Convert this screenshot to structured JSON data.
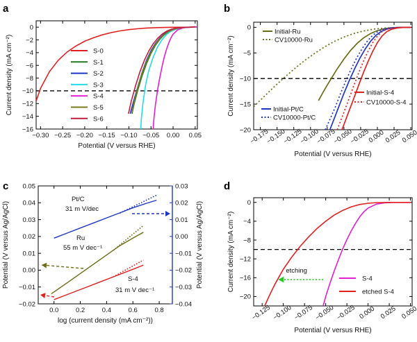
{
  "chart_data": [
    {
      "panel": "a",
      "type": "line",
      "xlabel": "Potential (V versus RHE)",
      "ylabel": "Current density (mA cm⁻²)",
      "xlim": [
        -0.31,
        0.055
      ],
      "ylim": [
        -16,
        1
      ],
      "xticks": [
        -0.3,
        -0.25,
        -0.2,
        -0.15,
        -0.1,
        -0.05,
        0.0,
        0.05
      ],
      "xtick_labels": [
        "−0.30",
        "−0.25",
        "−0.20",
        "−0.15",
        "−0.10",
        "−0.05",
        "0.00",
        "0.05"
      ],
      "yticks": [
        0,
        -2,
        -4,
        -6,
        -8,
        -10,
        -12,
        -14,
        -16
      ],
      "ytick_labels": [
        "0",
        "−2",
        "−4",
        "−6",
        "−8",
        "−10",
        "−12",
        "−14",
        "−16"
      ],
      "hline": -10,
      "legend_position": "middle-left",
      "series": [
        {
          "name": "S-0",
          "color": "#e32020",
          "x": [
            -0.31,
            -0.3,
            -0.28,
            -0.26,
            -0.24,
            -0.22,
            -0.2,
            -0.18,
            -0.16,
            -0.14,
            -0.12,
            -0.1,
            -0.08,
            -0.06,
            -0.04,
            -0.02,
            0.0,
            0.02,
            0.04,
            0.05
          ],
          "y": [
            -11.6,
            -9.6,
            -7.0,
            -5.2,
            -3.9,
            -2.95,
            -2.2,
            -1.65,
            -1.2,
            -0.85,
            -0.58,
            -0.38,
            -0.24,
            -0.14,
            -0.08,
            -0.04,
            -0.02,
            -0.01,
            0.0,
            0.05
          ]
        },
        {
          "name": "S-1",
          "color": "#1e7b1e",
          "x": [
            -0.093,
            -0.088,
            -0.08,
            -0.07,
            -0.06,
            -0.05,
            -0.04,
            -0.03,
            -0.02,
            -0.01,
            0.0,
            0.01,
            0.02,
            0.03,
            0.04,
            0.05
          ],
          "y": [
            -13.6,
            -12.0,
            -9.9,
            -7.6,
            -5.7,
            -4.1,
            -2.85,
            -1.9,
            -1.2,
            -0.7,
            -0.38,
            -0.18,
            -0.08,
            -0.03,
            0.0,
            0.05
          ]
        },
        {
          "name": "S-2",
          "color": "#1f35c4",
          "x": [
            -0.097,
            -0.09,
            -0.08,
            -0.07,
            -0.06,
            -0.05,
            -0.04,
            -0.03,
            -0.02,
            -0.01,
            0.0,
            0.01,
            0.02,
            0.03,
            0.04,
            0.05
          ],
          "y": [
            -13.6,
            -11.8,
            -9.4,
            -7.1,
            -5.2,
            -3.7,
            -2.55,
            -1.7,
            -1.05,
            -0.62,
            -0.33,
            -0.15,
            -0.06,
            -0.02,
            0.0,
            0.05
          ]
        },
        {
          "name": "S-3",
          "color": "#22dde6",
          "x": [
            -0.073,
            -0.072,
            -0.068,
            -0.062,
            -0.055,
            -0.045,
            -0.035,
            -0.025,
            -0.015,
            -0.005,
            0.005,
            0.015,
            0.025,
            0.035,
            0.045,
            0.055
          ],
          "y": [
            -16.0,
            -14.5,
            -11.8,
            -9.0,
            -6.8,
            -4.7,
            -3.1,
            -1.95,
            -1.15,
            -0.65,
            -0.35,
            -0.17,
            -0.07,
            -0.02,
            0.0,
            0.05
          ]
        },
        {
          "name": "S-4",
          "color": "#e020d0",
          "x": [
            -0.045,
            -0.044,
            -0.04,
            -0.035,
            -0.03,
            -0.025,
            -0.02,
            -0.015,
            -0.01,
            -0.005,
            0.0,
            0.01,
            0.02,
            0.03,
            0.04,
            0.055
          ],
          "y": [
            -16.0,
            -14.8,
            -12.2,
            -9.8,
            -7.9,
            -6.2,
            -4.7,
            -3.5,
            -2.5,
            -1.7,
            -1.1,
            -0.45,
            -0.16,
            -0.05,
            0.0,
            0.05
          ]
        },
        {
          "name": "S-5",
          "color": "#7a7a1e",
          "x": [
            -0.093,
            -0.088,
            -0.08,
            -0.07,
            -0.06,
            -0.05,
            -0.04,
            -0.03,
            -0.02,
            -0.01,
            0.0,
            0.01,
            0.02,
            0.03,
            0.04,
            0.05
          ],
          "y": [
            -13.4,
            -11.7,
            -9.5,
            -7.2,
            -5.4,
            -3.9,
            -2.7,
            -1.8,
            -1.15,
            -0.68,
            -0.37,
            -0.17,
            -0.07,
            -0.02,
            0.0,
            0.05
          ]
        },
        {
          "name": "S-6",
          "color": "#c41a3d",
          "x": [
            -0.101,
            -0.095,
            -0.085,
            -0.075,
            -0.065,
            -0.055,
            -0.045,
            -0.035,
            -0.025,
            -0.015,
            -0.005,
            0.005,
            0.015,
            0.025,
            0.035,
            0.05
          ],
          "y": [
            -13.6,
            -11.7,
            -9.2,
            -7.0,
            -5.2,
            -3.75,
            -2.6,
            -1.75,
            -1.1,
            -0.65,
            -0.35,
            -0.16,
            -0.06,
            -0.02,
            0.0,
            0.05
          ]
        }
      ]
    },
    {
      "panel": "b",
      "type": "line",
      "xlabel": "Potential (V versus RHE)",
      "ylabel": "Current density (mA cm⁻²)",
      "xlim": [
        -0.185,
        0.052
      ],
      "ylim": [
        -20,
        1
      ],
      "xticks": [
        -0.175,
        -0.15,
        -0.125,
        -0.1,
        -0.075,
        -0.05,
        -0.025,
        0.0,
        0.025,
        0.05
      ],
      "xtick_labels": [
        "−0.175",
        "−0.150",
        "−0.125",
        "−0.100",
        "−0.075",
        "−0.050",
        "−0.025",
        "0.000",
        "0.025",
        "0.050"
      ],
      "yticks": [
        0,
        -5,
        -10,
        -15,
        -20
      ],
      "ytick_labels": [
        "0",
        "−5",
        "−10",
        "−15",
        "−20"
      ],
      "hline": -10,
      "legend_position": "top-left and bottom",
      "series": [
        {
          "name": "Initial-Ru",
          "color": "#6b6b14",
          "dash": false,
          "x": [
            -0.088,
            -0.08,
            -0.07,
            -0.06,
            -0.05,
            -0.04,
            -0.03,
            -0.02,
            -0.01,
            0.0,
            0.01,
            0.02,
            0.03,
            0.04,
            0.05
          ],
          "y": [
            -14.3,
            -12.4,
            -10.2,
            -8.1,
            -6.2,
            -4.5,
            -3.1,
            -2.0,
            -1.2,
            -0.65,
            -0.3,
            -0.12,
            -0.04,
            -0.01,
            0.0
          ]
        },
        {
          "name": "CV10000-Ru",
          "color": "#6b6b14",
          "dash": true,
          "x": [
            -0.185,
            -0.17,
            -0.155,
            -0.14,
            -0.125,
            -0.11,
            -0.095,
            -0.08,
            -0.065,
            -0.05,
            -0.035,
            -0.02,
            -0.005,
            0.01,
            0.025,
            0.04,
            0.05
          ],
          "y": [
            -15.5,
            -13.6,
            -11.7,
            -9.9,
            -8.2,
            -6.6,
            -5.2,
            -3.9,
            -2.8,
            -1.9,
            -1.2,
            -0.7,
            -0.35,
            -0.15,
            -0.05,
            -0.01,
            0.0
          ]
        },
        {
          "name": "Initial-Pt/C",
          "color": "#1f35c4",
          "dash": false,
          "x": [
            -0.071,
            -0.065,
            -0.058,
            -0.05,
            -0.042,
            -0.034,
            -0.026,
            -0.018,
            -0.01,
            -0.002,
            0.006,
            0.014,
            0.022,
            0.03,
            0.04,
            0.05
          ],
          "y": [
            -20.0,
            -18.0,
            -15.6,
            -12.9,
            -10.4,
            -8.1,
            -6.0,
            -4.2,
            -2.7,
            -1.55,
            -0.8,
            -0.35,
            -0.13,
            -0.04,
            0.0,
            0.0
          ]
        },
        {
          "name": "CV10000-Pt/C",
          "color": "#1f35c4",
          "dash": true,
          "x": [
            -0.078,
            -0.071,
            -0.063,
            -0.055,
            -0.047,
            -0.039,
            -0.031,
            -0.023,
            -0.015,
            -0.007,
            0.001,
            0.009,
            0.017,
            0.025,
            0.035,
            0.05
          ],
          "y": [
            -20.0,
            -18.0,
            -15.6,
            -12.9,
            -10.4,
            -8.1,
            -6.0,
            -4.2,
            -2.7,
            -1.55,
            -0.8,
            -0.35,
            -0.13,
            -0.04,
            0.0,
            0.0
          ]
        },
        {
          "name": "Initial-S-4",
          "color": "#e32020",
          "dash": false,
          "x": [
            -0.053,
            -0.048,
            -0.042,
            -0.035,
            -0.028,
            -0.021,
            -0.014,
            -0.007,
            0.0,
            0.007,
            0.014,
            0.021,
            0.03,
            0.04,
            0.05
          ],
          "y": [
            -20.0,
            -18.3,
            -16.2,
            -13.8,
            -11.3,
            -8.9,
            -6.7,
            -4.7,
            -3.0,
            -1.7,
            -0.85,
            -0.38,
            -0.12,
            -0.02,
            0.0
          ]
        },
        {
          "name": "CV10000-S-4",
          "color": "#e32020",
          "dash": true,
          "x": [
            -0.06,
            -0.055,
            -0.049,
            -0.042,
            -0.035,
            -0.028,
            -0.021,
            -0.014,
            -0.007,
            0.0,
            0.007,
            0.014,
            0.023,
            0.033,
            0.045,
            0.05
          ],
          "y": [
            -20.0,
            -18.3,
            -16.2,
            -13.8,
            -11.3,
            -8.9,
            -6.7,
            -4.7,
            -3.0,
            -1.7,
            -0.85,
            -0.38,
            -0.12,
            -0.02,
            0.0,
            0.0
          ]
        }
      ]
    },
    {
      "panel": "c",
      "type": "line",
      "xlabel": "log (current density (mA cm⁻²))",
      "ylabel": "Potential (V versus Ag/AgCl)",
      "ylabel_right": "Potential (V versus Ag/AgCl)",
      "xlim": [
        -0.12,
        0.9
      ],
      "ylim": [
        -0.02,
        0.05
      ],
      "ylim_right": [
        -0.04,
        0.03
      ],
      "xticks": [
        0.0,
        0.2,
        0.4,
        0.6,
        0.8
      ],
      "xtick_labels": [
        "0.0",
        "0.2",
        "0.4",
        "0.6",
        "0.8"
      ],
      "yticks": [
        -0.02,
        -0.01,
        0.0,
        0.01,
        0.02,
        0.03,
        0.04,
        0.05
      ],
      "ytick_labels": [
        "−0.02",
        "−0.01",
        "0.00",
        "0.01",
        "0.02",
        "0.03",
        "0.04",
        "0.05"
      ],
      "yticks_right": [
        -0.04,
        -0.03,
        -0.02,
        -0.01,
        0.0,
        0.01,
        0.02,
        0.03
      ],
      "ytick_labels_right": [
        "−0.04",
        "−0.03",
        "−0.02",
        "−0.01",
        "0.00",
        "0.01",
        "0.02",
        "0.03"
      ],
      "annotations": [
        {
          "text": "Pt/C",
          "color": "#1f35c4"
        },
        {
          "text": "31 m V/dec",
          "color": "#1f35c4"
        },
        {
          "text": "Ru",
          "color": "#6b6b14"
        },
        {
          "text": "55 m V dec⁻¹",
          "color": "#6b6b14"
        },
        {
          "text": "S-4",
          "color": "#e32020"
        },
        {
          "text": "31 m V dec⁻¹",
          "color": "#e32020"
        }
      ],
      "series": [
        {
          "name": "Pt/C",
          "axis": "right",
          "color": "#1f35c4",
          "x": [
            0.0,
            0.1,
            0.2,
            0.3,
            0.4,
            0.5,
            0.6,
            0.7,
            0.78
          ],
          "y": [
            -0.001,
            0.002,
            0.005,
            0.008,
            0.011,
            0.014,
            0.017,
            0.0196,
            0.0215
          ],
          "fit_x": [
            0.5,
            0.78
          ],
          "fit_y": [
            0.0138,
            0.0245
          ]
        },
        {
          "name": "Ru",
          "axis": "left",
          "color": "#6b6b14",
          "x": [
            -0.02,
            0.1,
            0.2,
            0.3,
            0.4,
            0.5,
            0.6,
            0.68
          ],
          "y": [
            -0.014,
            -0.0075,
            -0.002,
            0.0035,
            0.009,
            0.0145,
            0.019,
            0.0225
          ],
          "fit_x": [
            0.45,
            0.68
          ],
          "fit_y": [
            0.0117,
            0.0265
          ]
        },
        {
          "name": "S-4",
          "axis": "left",
          "color": "#e32020",
          "x": [
            0.0,
            0.1,
            0.2,
            0.3,
            0.4,
            0.5,
            0.6,
            0.68
          ],
          "y": [
            -0.0175,
            -0.0145,
            -0.0115,
            -0.0085,
            -0.0055,
            -0.0025,
            0.0005,
            0.003
          ],
          "fit_x": [
            0.45,
            0.68
          ],
          "fit_y": [
            -0.004,
            0.006
          ]
        }
      ]
    },
    {
      "panel": "d",
      "type": "line",
      "xlabel": "Potential (V versus RHE)",
      "ylabel": "Current density (mA cm⁻²)",
      "xlim": [
        -0.135,
        0.052
      ],
      "ylim": [
        -22,
        1
      ],
      "xticks": [
        -0.125,
        -0.1,
        -0.075,
        -0.05,
        -0.025,
        0.0,
        0.025,
        0.05
      ],
      "xtick_labels": [
        "−0.125",
        "−0.100",
        "−0.075",
        "−0.050",
        "−0.025",
        "0.000",
        "0.025",
        "0.050"
      ],
      "yticks": [
        0,
        -4,
        -8,
        -12,
        -16,
        -20
      ],
      "ytick_labels": [
        "0",
        "−4",
        "−8",
        "−12",
        "−16",
        "−20"
      ],
      "hline": -10,
      "annotation": {
        "text": "etching",
        "color": "#22cc22"
      },
      "legend_position": "bottom-right",
      "series": [
        {
          "name": "S-4",
          "color": "#e020d0",
          "x": [
            -0.053,
            -0.05,
            -0.045,
            -0.04,
            -0.035,
            -0.03,
            -0.025,
            -0.02,
            -0.015,
            -0.01,
            -0.005,
            0.0,
            0.01,
            0.02,
            0.03,
            0.04,
            0.05
          ],
          "y": [
            -22.0,
            -20.0,
            -17.2,
            -14.6,
            -12.2,
            -9.9,
            -7.9,
            -6.1,
            -4.5,
            -3.1,
            -2.0,
            -1.2,
            -0.35,
            -0.08,
            -0.01,
            0.0,
            0.0
          ]
        },
        {
          "name": "etched S-4",
          "color": "#e32020",
          "x": [
            -0.122,
            -0.117,
            -0.11,
            -0.1,
            -0.09,
            -0.08,
            -0.07,
            -0.06,
            -0.05,
            -0.04,
            -0.03,
            -0.02,
            -0.01,
            0.0,
            0.01,
            0.025,
            0.05
          ],
          "y": [
            -22.0,
            -20.0,
            -17.4,
            -14.2,
            -11.6,
            -9.3,
            -7.3,
            -5.5,
            -4.0,
            -2.7,
            -1.7,
            -0.95,
            -0.45,
            -0.18,
            -0.05,
            0.0,
            0.0
          ]
        }
      ]
    }
  ]
}
